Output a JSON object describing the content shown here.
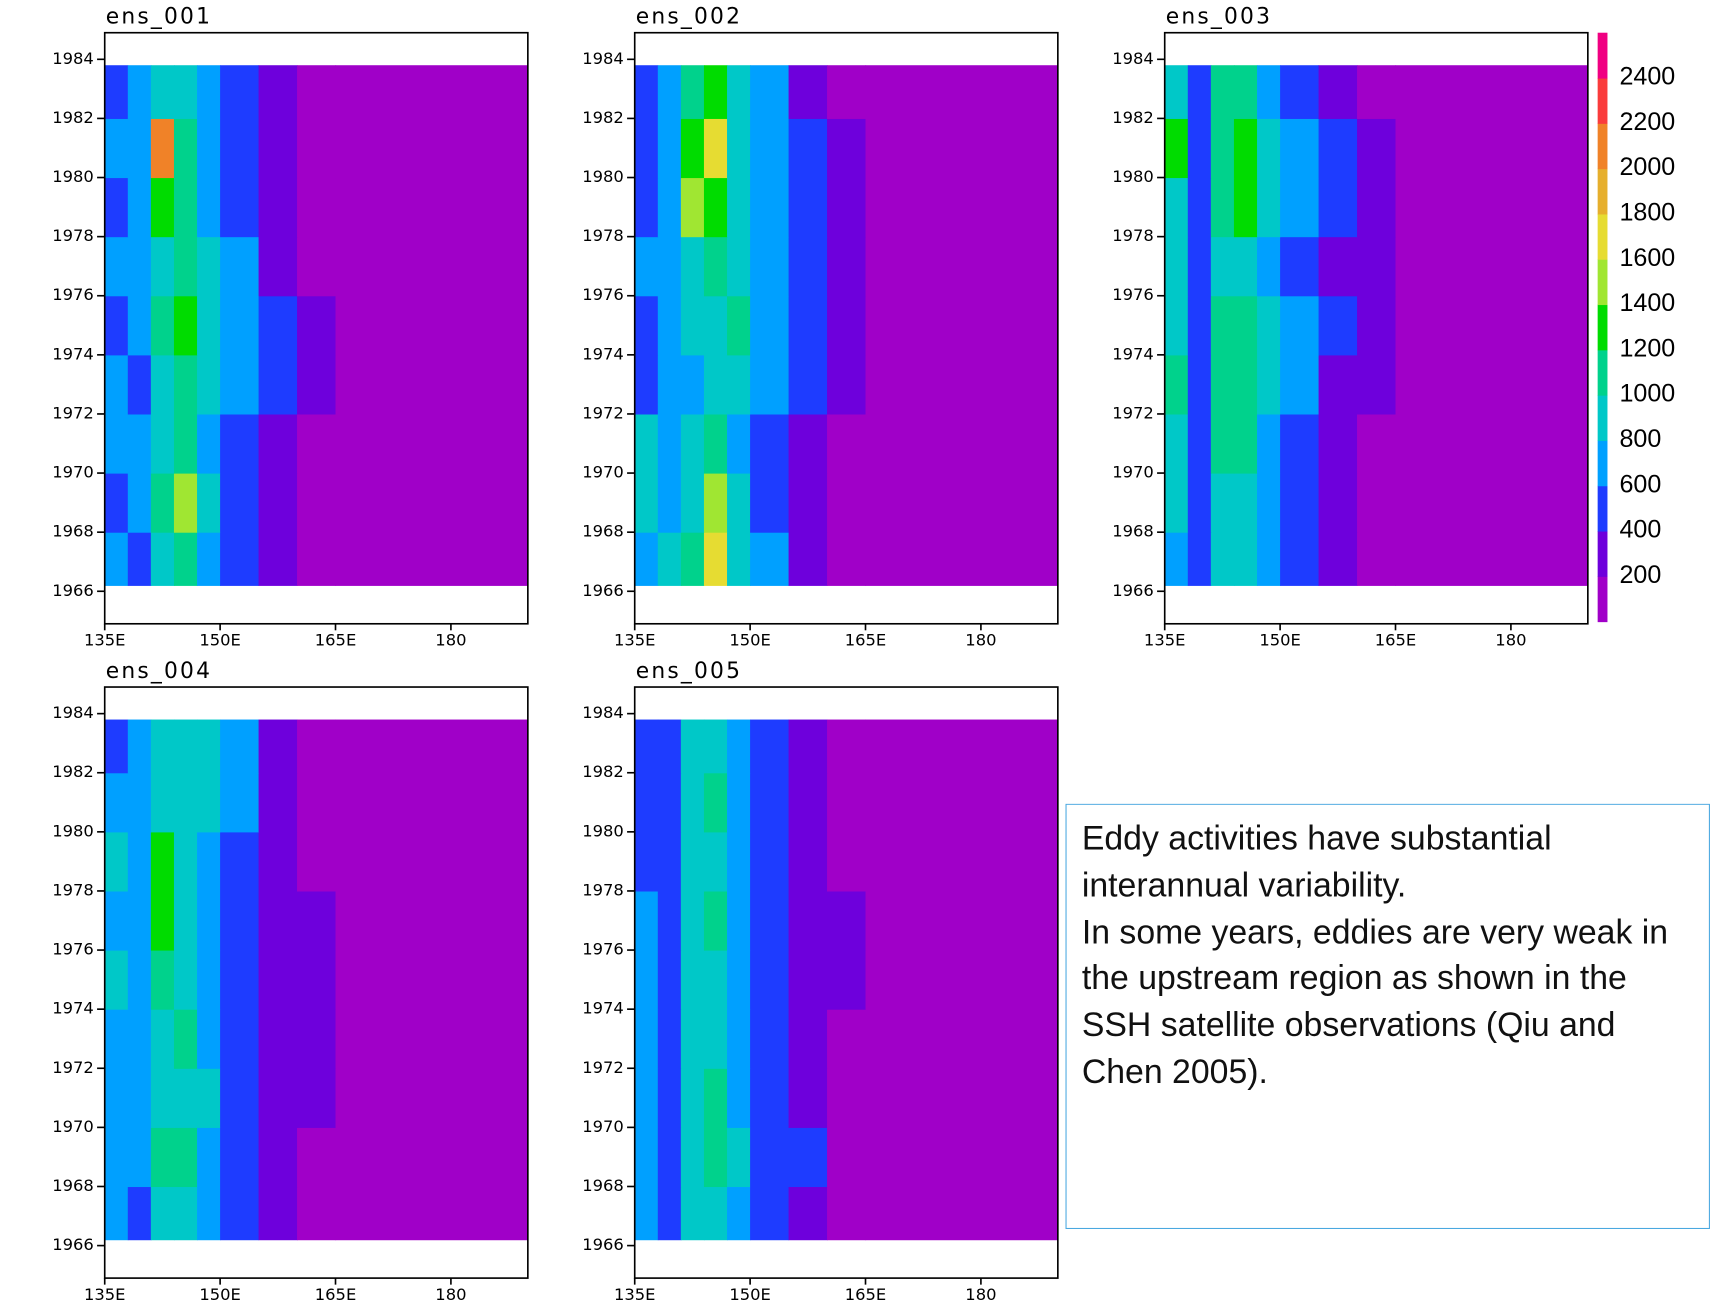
{
  "chart_data": [
    {
      "type": "heatmap",
      "title": "ens_001",
      "x_edges": [
        135,
        138,
        141,
        144,
        147,
        150,
        155,
        160,
        165,
        190
      ],
      "y_edges": [
        1966.2,
        1968,
        1970,
        1972,
        1974,
        1976,
        1978,
        1980,
        1982,
        1983.8
      ],
      "values": [
        [
          600,
          500,
          900,
          1000,
          700,
          500,
          300,
          150,
          100
        ],
        [
          500,
          600,
          1000,
          1500,
          800,
          500,
          350,
          150,
          100
        ],
        [
          700,
          600,
          900,
          1100,
          700,
          500,
          300,
          150,
          100
        ],
        [
          600,
          500,
          800,
          1000,
          800,
          600,
          400,
          250,
          100
        ],
        [
          500,
          600,
          1000,
          1200,
          900,
          600,
          400,
          250,
          100
        ],
        [
          600,
          700,
          900,
          1100,
          800,
          600,
          350,
          150,
          100
        ],
        [
          500,
          700,
          1300,
          1000,
          700,
          500,
          300,
          150,
          100
        ],
        [
          600,
          700,
          2100,
          1000,
          600,
          500,
          300,
          150,
          100
        ],
        [
          500,
          600,
          800,
          900,
          600,
          400,
          300,
          150,
          100
        ]
      ],
      "xlim": [
        135,
        190
      ],
      "ylim": [
        1964.9,
        1984.9
      ],
      "xticks": [
        {
          "value": 135,
          "label": "135E"
        },
        {
          "value": 150,
          "label": "150E"
        },
        {
          "value": 165,
          "label": "165E"
        },
        180
      ],
      "yticks": [
        1966,
        1968,
        1970,
        1972,
        1974,
        1976,
        1978,
        1980,
        1982,
        1984
      ]
    },
    {
      "type": "heatmap",
      "title": "ens_002",
      "x_edges": [
        135,
        138,
        141,
        144,
        147,
        150,
        155,
        160,
        165,
        190
      ],
      "y_edges": [
        1966.2,
        1968,
        1970,
        1972,
        1974,
        1976,
        1978,
        1980,
        1982,
        1983.8
      ],
      "values": [
        [
          600,
          800,
          1000,
          1700,
          900,
          600,
          300,
          150,
          100
        ],
        [
          800,
          700,
          900,
          1400,
          800,
          500,
          300,
          150,
          100
        ],
        [
          900,
          600,
          800,
          1000,
          700,
          500,
          300,
          150,
          100
        ],
        [
          500,
          600,
          700,
          900,
          800,
          600,
          400,
          250,
          100
        ],
        [
          500,
          600,
          800,
          900,
          1000,
          700,
          400,
          250,
          100
        ],
        [
          600,
          700,
          900,
          1000,
          800,
          600,
          400,
          200,
          100
        ],
        [
          500,
          700,
          1500,
          1200,
          800,
          600,
          400,
          200,
          100
        ],
        [
          500,
          700,
          1300,
          1700,
          900,
          700,
          400,
          200,
          100
        ],
        [
          500,
          700,
          1100,
          1200,
          800,
          600,
          300,
          150,
          100
        ]
      ],
      "xlim": [
        135,
        190
      ],
      "ylim": [
        1964.9,
        1984.9
      ],
      "xticks": [
        {
          "value": 135,
          "label": "135E"
        },
        {
          "value": 150,
          "label": "150E"
        },
        {
          "value": 165,
          "label": "165E"
        },
        180
      ],
      "yticks": [
        1966,
        1968,
        1970,
        1972,
        1974,
        1976,
        1978,
        1980,
        1982,
        1984
      ]
    },
    {
      "type": "heatmap",
      "title": "ens_003",
      "x_edges": [
        135,
        138,
        141,
        144,
        147,
        150,
        155,
        160,
        165,
        190
      ],
      "y_edges": [
        1966.2,
        1968,
        1970,
        1972,
        1974,
        1976,
        1978,
        1980,
        1982,
        1983.8
      ],
      "values": [
        [
          700,
          500,
          800,
          800,
          600,
          400,
          250,
          100,
          100
        ],
        [
          800,
          500,
          900,
          900,
          600,
          450,
          250,
          100,
          100
        ],
        [
          900,
          500,
          1000,
          1000,
          700,
          500,
          300,
          150,
          100
        ],
        [
          1000,
          500,
          1100,
          1100,
          800,
          600,
          350,
          200,
          100
        ],
        [
          900,
          500,
          1000,
          1100,
          800,
          600,
          400,
          250,
          100
        ],
        [
          800,
          500,
          900,
          900,
          700,
          500,
          350,
          200,
          100
        ],
        [
          900,
          500,
          1000,
          1300,
          900,
          600,
          400,
          200,
          100
        ],
        [
          1200,
          500,
          1100,
          1200,
          800,
          600,
          400,
          200,
          100
        ],
        [
          900,
          500,
          1000,
          1100,
          700,
          500,
          300,
          150,
          100
        ]
      ],
      "xlim": [
        135,
        190
      ],
      "ylim": [
        1964.9,
        1984.9
      ],
      "xticks": [
        {
          "value": 135,
          "label": "135E"
        },
        {
          "value": 150,
          "label": "150E"
        },
        {
          "value": 165,
          "label": "165E"
        },
        180
      ],
      "yticks": [
        1966,
        1968,
        1970,
        1972,
        1974,
        1976,
        1978,
        1980,
        1982,
        1984
      ]
    },
    {
      "type": "heatmap",
      "title": "ens_004",
      "x_edges": [
        135,
        138,
        141,
        144,
        147,
        150,
        155,
        160,
        165,
        190
      ],
      "y_edges": [
        1966.2,
        1968,
        1970,
        1972,
        1974,
        1976,
        1978,
        1980,
        1982,
        1983.8
      ],
      "values": [
        [
          600,
          500,
          900,
          900,
          700,
          500,
          300,
          150,
          100
        ],
        [
          600,
          600,
          1000,
          1000,
          700,
          500,
          300,
          150,
          100
        ],
        [
          700,
          600,
          900,
          900,
          800,
          500,
          300,
          200,
          100
        ],
        [
          600,
          600,
          900,
          1000,
          700,
          500,
          350,
          250,
          100
        ],
        [
          800,
          600,
          1100,
          900,
          700,
          500,
          350,
          200,
          100
        ],
        [
          700,
          600,
          1300,
          900,
          700,
          500,
          350,
          200,
          100
        ],
        [
          800,
          600,
          1300,
          900,
          700,
          500,
          300,
          150,
          100
        ],
        [
          600,
          600,
          900,
          900,
          900,
          600,
          350,
          150,
          100
        ],
        [
          500,
          600,
          800,
          900,
          800,
          600,
          300,
          150,
          100
        ]
      ],
      "xlim": [
        135,
        190
      ],
      "ylim": [
        1964.9,
        1984.9
      ],
      "xticks": [
        {
          "value": 135,
          "label": "135E"
        },
        {
          "value": 150,
          "label": "150E"
        },
        {
          "value": 165,
          "label": "165E"
        },
        180
      ],
      "yticks": [
        1966,
        1968,
        1970,
        1972,
        1974,
        1976,
        1978,
        1980,
        1982,
        1984
      ]
    },
    {
      "type": "heatmap",
      "title": "ens_005",
      "x_edges": [
        135,
        138,
        141,
        144,
        147,
        150,
        155,
        160,
        165,
        190
      ],
      "y_edges": [
        1966.2,
        1968,
        1970,
        1972,
        1974,
        1976,
        1978,
        1980,
        1982,
        1983.8
      ],
      "values": [
        [
          600,
          500,
          800,
          900,
          700,
          450,
          300,
          150,
          100
        ],
        [
          600,
          500,
          800,
          1000,
          800,
          500,
          400,
          150,
          100
        ],
        [
          600,
          500,
          900,
          1100,
          700,
          500,
          300,
          150,
          100
        ],
        [
          600,
          500,
          800,
          900,
          600,
          450,
          300,
          150,
          100
        ],
        [
          600,
          500,
          800,
          900,
          700,
          500,
          350,
          200,
          100
        ],
        [
          600,
          500,
          900,
          1100,
          700,
          500,
          350,
          200,
          100
        ],
        [
          500,
          500,
          800,
          900,
          600,
          450,
          300,
          150,
          100
        ],
        [
          500,
          500,
          900,
          1100,
          700,
          500,
          300,
          150,
          100
        ],
        [
          500,
          500,
          800,
          900,
          600,
          450,
          300,
          150,
          100
        ]
      ],
      "xlim": [
        135,
        190
      ],
      "ylim": [
        1964.9,
        1984.9
      ],
      "xticks": [
        {
          "value": 135,
          "label": "135E"
        },
        {
          "value": 150,
          "label": "150E"
        },
        {
          "value": 165,
          "label": "165E"
        },
        180
      ],
      "yticks": [
        1966,
        1968,
        1970,
        1972,
        1974,
        1976,
        1978,
        1980,
        1982,
        1984
      ]
    }
  ],
  "colorbar": {
    "levels": [
      200,
      400,
      600,
      800,
      1000,
      1200,
      1400,
      1600,
      1800,
      2000,
      2200,
      2400
    ],
    "colors": [
      "#a000c8",
      "#6e00dc",
      "#1e3cff",
      "#00a0ff",
      "#00c8c8",
      "#00d28c",
      "#00dc00",
      "#a0e632",
      "#e6dc32",
      "#e6af2d",
      "#f08228",
      "#fa3c3c",
      "#f00082"
    ]
  },
  "text_box": {
    "paragraphs": [
      "Eddy activities have substantial interannual variability.",
      "In some years, eddies are very weak in the upstream region as shown in the SSH satellite observations (Qiu and Chen 2005)."
    ]
  }
}
